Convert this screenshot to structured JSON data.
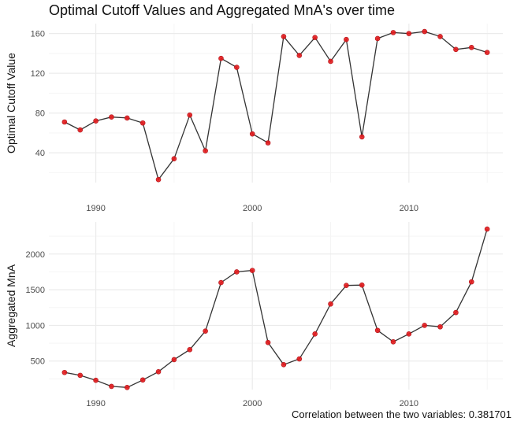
{
  "title": "Optimal Cutoff Values and Aggregated MnA's over time",
  "caption": "Correlation between the two variables: 0.381701",
  "colors": {
    "line": "#333333",
    "point": "#e41a1c",
    "grid_major": "#ebebeb",
    "grid_minor": "#f5f5f5"
  },
  "chart_data": [
    {
      "type": "line",
      "title": "Optimal Cutoff Values and Aggregated MnA's over time",
      "xlabel": "",
      "ylabel": "Optimal Cutoff Value",
      "xlim": [
        1987,
        2016
      ],
      "ylim": [
        10,
        170
      ],
      "x_ticks": [
        1990,
        2000,
        2010
      ],
      "y_ticks": [
        40,
        80,
        120,
        160
      ],
      "grid": true,
      "x": [
        1988,
        1989,
        1990,
        1991,
        1992,
        1993,
        1994,
        1995,
        1996,
        1997,
        1998,
        1999,
        2000,
        2001,
        2002,
        2003,
        2004,
        2005,
        2006,
        2007,
        2008,
        2009,
        2010,
        2011,
        2012,
        2013,
        2014,
        2015
      ],
      "y": [
        71,
        63,
        72,
        76,
        75,
        70,
        13,
        34,
        78,
        42,
        135,
        126,
        59,
        50,
        157,
        138,
        156,
        132,
        154,
        56,
        155,
        161,
        160,
        162,
        157,
        144,
        146,
        141
      ]
    },
    {
      "type": "line",
      "xlabel": "",
      "ylabel": "Aggregated MnA",
      "xlim": [
        1987,
        2016
      ],
      "ylim": [
        100,
        2450
      ],
      "x_ticks": [
        1990,
        2000,
        2010
      ],
      "y_ticks": [
        500,
        1000,
        1500,
        2000
      ],
      "grid": true,
      "x": [
        1988,
        1989,
        1990,
        1991,
        1992,
        1993,
        1994,
        1995,
        1996,
        1997,
        1998,
        1999,
        2000,
        2001,
        2002,
        2003,
        2004,
        2005,
        2006,
        2007,
        2008,
        2009,
        2010,
        2011,
        2012,
        2013,
        2014,
        2015
      ],
      "y": [
        340,
        300,
        230,
        145,
        130,
        235,
        350,
        520,
        660,
        920,
        1600,
        1750,
        1770,
        760,
        450,
        530,
        880,
        1300,
        1560,
        1565,
        930,
        770,
        880,
        1000,
        980,
        1180,
        1610,
        2350
      ]
    }
  ]
}
